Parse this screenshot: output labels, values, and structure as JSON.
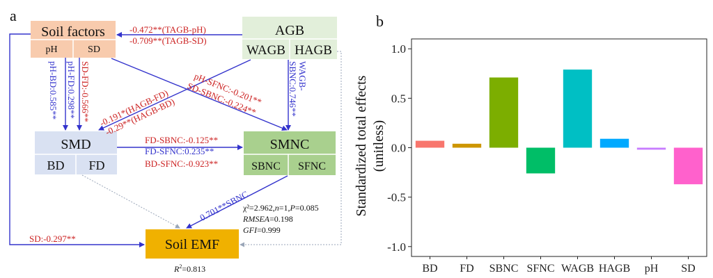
{
  "panel_a": {
    "label": "a",
    "boxes": {
      "soil_factors": {
        "title": "Soil factors",
        "sub": [
          "pH",
          "SD"
        ]
      },
      "agb": {
        "title": "AGB",
        "sub": [
          "WAGB",
          "HAGB"
        ]
      },
      "smd": {
        "title": "SMD",
        "sub": [
          "BD",
          "FD"
        ]
      },
      "smnc": {
        "title": "SMNC",
        "sub": [
          "SBNC",
          "SFNC"
        ]
      },
      "emf": {
        "title": "Soil EMF"
      }
    },
    "path_labels": {
      "agb_soil_1": "-0.472**(TAGB-pH)",
      "agb_soil_2": "-0.709**(TAGB-SD)",
      "pH_BD": "pH-BD:0.585**",
      "pH_FD": "pH-FD:0.298**",
      "SD_FD": "SD-FD:-0.566**",
      "HAGB_FD": "-0.191*(HAGB-FD)",
      "HAGB_BD": "-0.29**(HAGB-BD)",
      "pH_SFNC": "pH-SFNC:-0.201**",
      "SD_SBNC": "SD-SBNC:-0.224**",
      "WAGB_a": "WAGB-",
      "WAGB_b": "SBNC:0.746**",
      "FD_SBNC": "FD-SBNC:-0.125**",
      "FD_SFNC": "FD-SFNC:0.235**",
      "BD_SFNC": "BD-SFNC:-0.923**",
      "SBNC_EMF": "0.701**SBNC",
      "SD_EMF": "SD:-0.297**"
    },
    "fit": {
      "chi": "χ²=2.962,",
      "n": "n",
      "n_rest": "=1,",
      "p": "P",
      "p_rest": "=0.085",
      "rmsea": "RMSEA",
      "rmsea_rest": "=0.198",
      "gfi": "GFI",
      "gfi_rest": "=0.999",
      "r2": "R",
      "r2_sup": "2",
      "r2_rest": "=0.813"
    },
    "colors": {
      "soil": "#f8cbad",
      "agb": "#e2efda",
      "smd": "#d9e1f2",
      "smnc": "#a9d08e",
      "emf": "#f0b100",
      "pos": "#3333cc",
      "neg": "#cc2222"
    }
  },
  "panel_b": {
    "label": "b"
  },
  "chart_data": {
    "type": "bar",
    "categories": [
      "BD",
      "FD",
      "SBNC",
      "SFNC",
      "WAGB",
      "HAGB",
      "pH",
      "SD"
    ],
    "values": [
      0.07,
      0.04,
      0.71,
      -0.26,
      0.79,
      0.09,
      -0.02,
      -0.37
    ],
    "colors": [
      "#f8766d",
      "#cd9600",
      "#7cae00",
      "#00be67",
      "#00bfc4",
      "#00a9ff",
      "#c77cff",
      "#ff61cc"
    ],
    "ylabel_line1": "Standardized total effects",
    "ylabel_line2": "(unitless)",
    "ylim": [
      -1.1,
      1.1
    ],
    "yticks": [
      1.0,
      0.5,
      0.0,
      -0.5,
      -1.0
    ],
    "ytick_labels": [
      "1.0",
      "0.5",
      "0.0",
      "-0.5",
      "-1.0"
    ],
    "grid": false
  }
}
